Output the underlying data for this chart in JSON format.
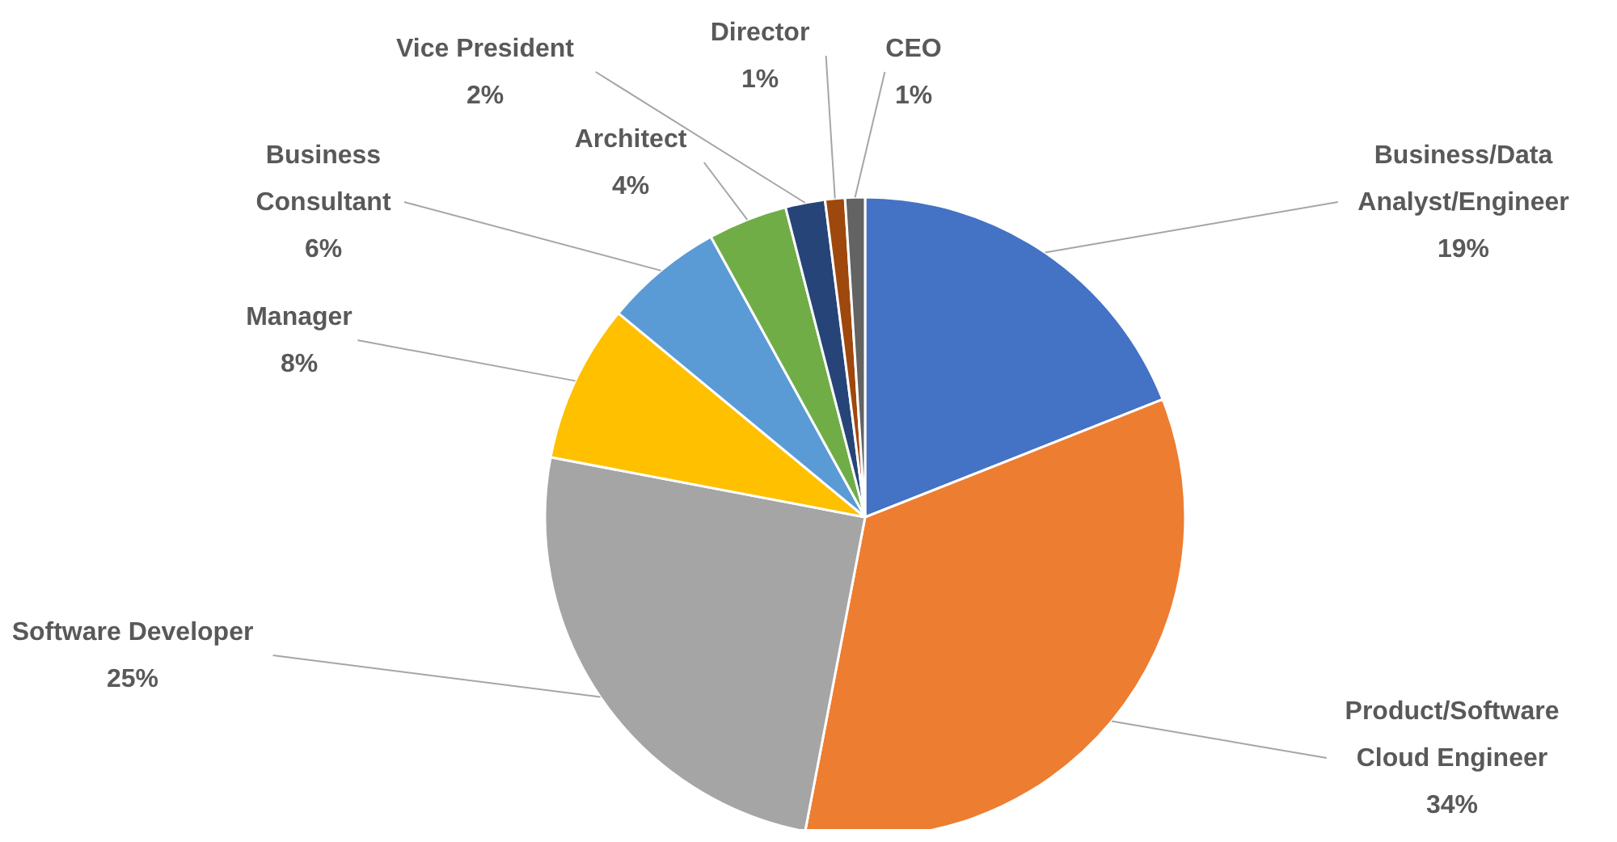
{
  "chart_data": {
    "type": "pie",
    "categories": [
      "Business/Data Analyst/Engineer",
      "Product/Software Cloud Engineer",
      "Software Developer",
      "Manager",
      "Business Consultant",
      "Architect",
      "Vice President",
      "Director",
      "CEO"
    ],
    "values": [
      19,
      34,
      25,
      8,
      6,
      4,
      2,
      1,
      1
    ],
    "value_labels": [
      "19%",
      "34%",
      "25%",
      "8%",
      "6%",
      "4%",
      "2%",
      "1%",
      "1%"
    ],
    "colors": [
      "#4472c4",
      "#ed7d31",
      "#a5a5a5",
      "#ffc000",
      "#5b9bd5",
      "#70ad47",
      "#264478",
      "#9e480e",
      "#636363"
    ],
    "legend": false
  }
}
